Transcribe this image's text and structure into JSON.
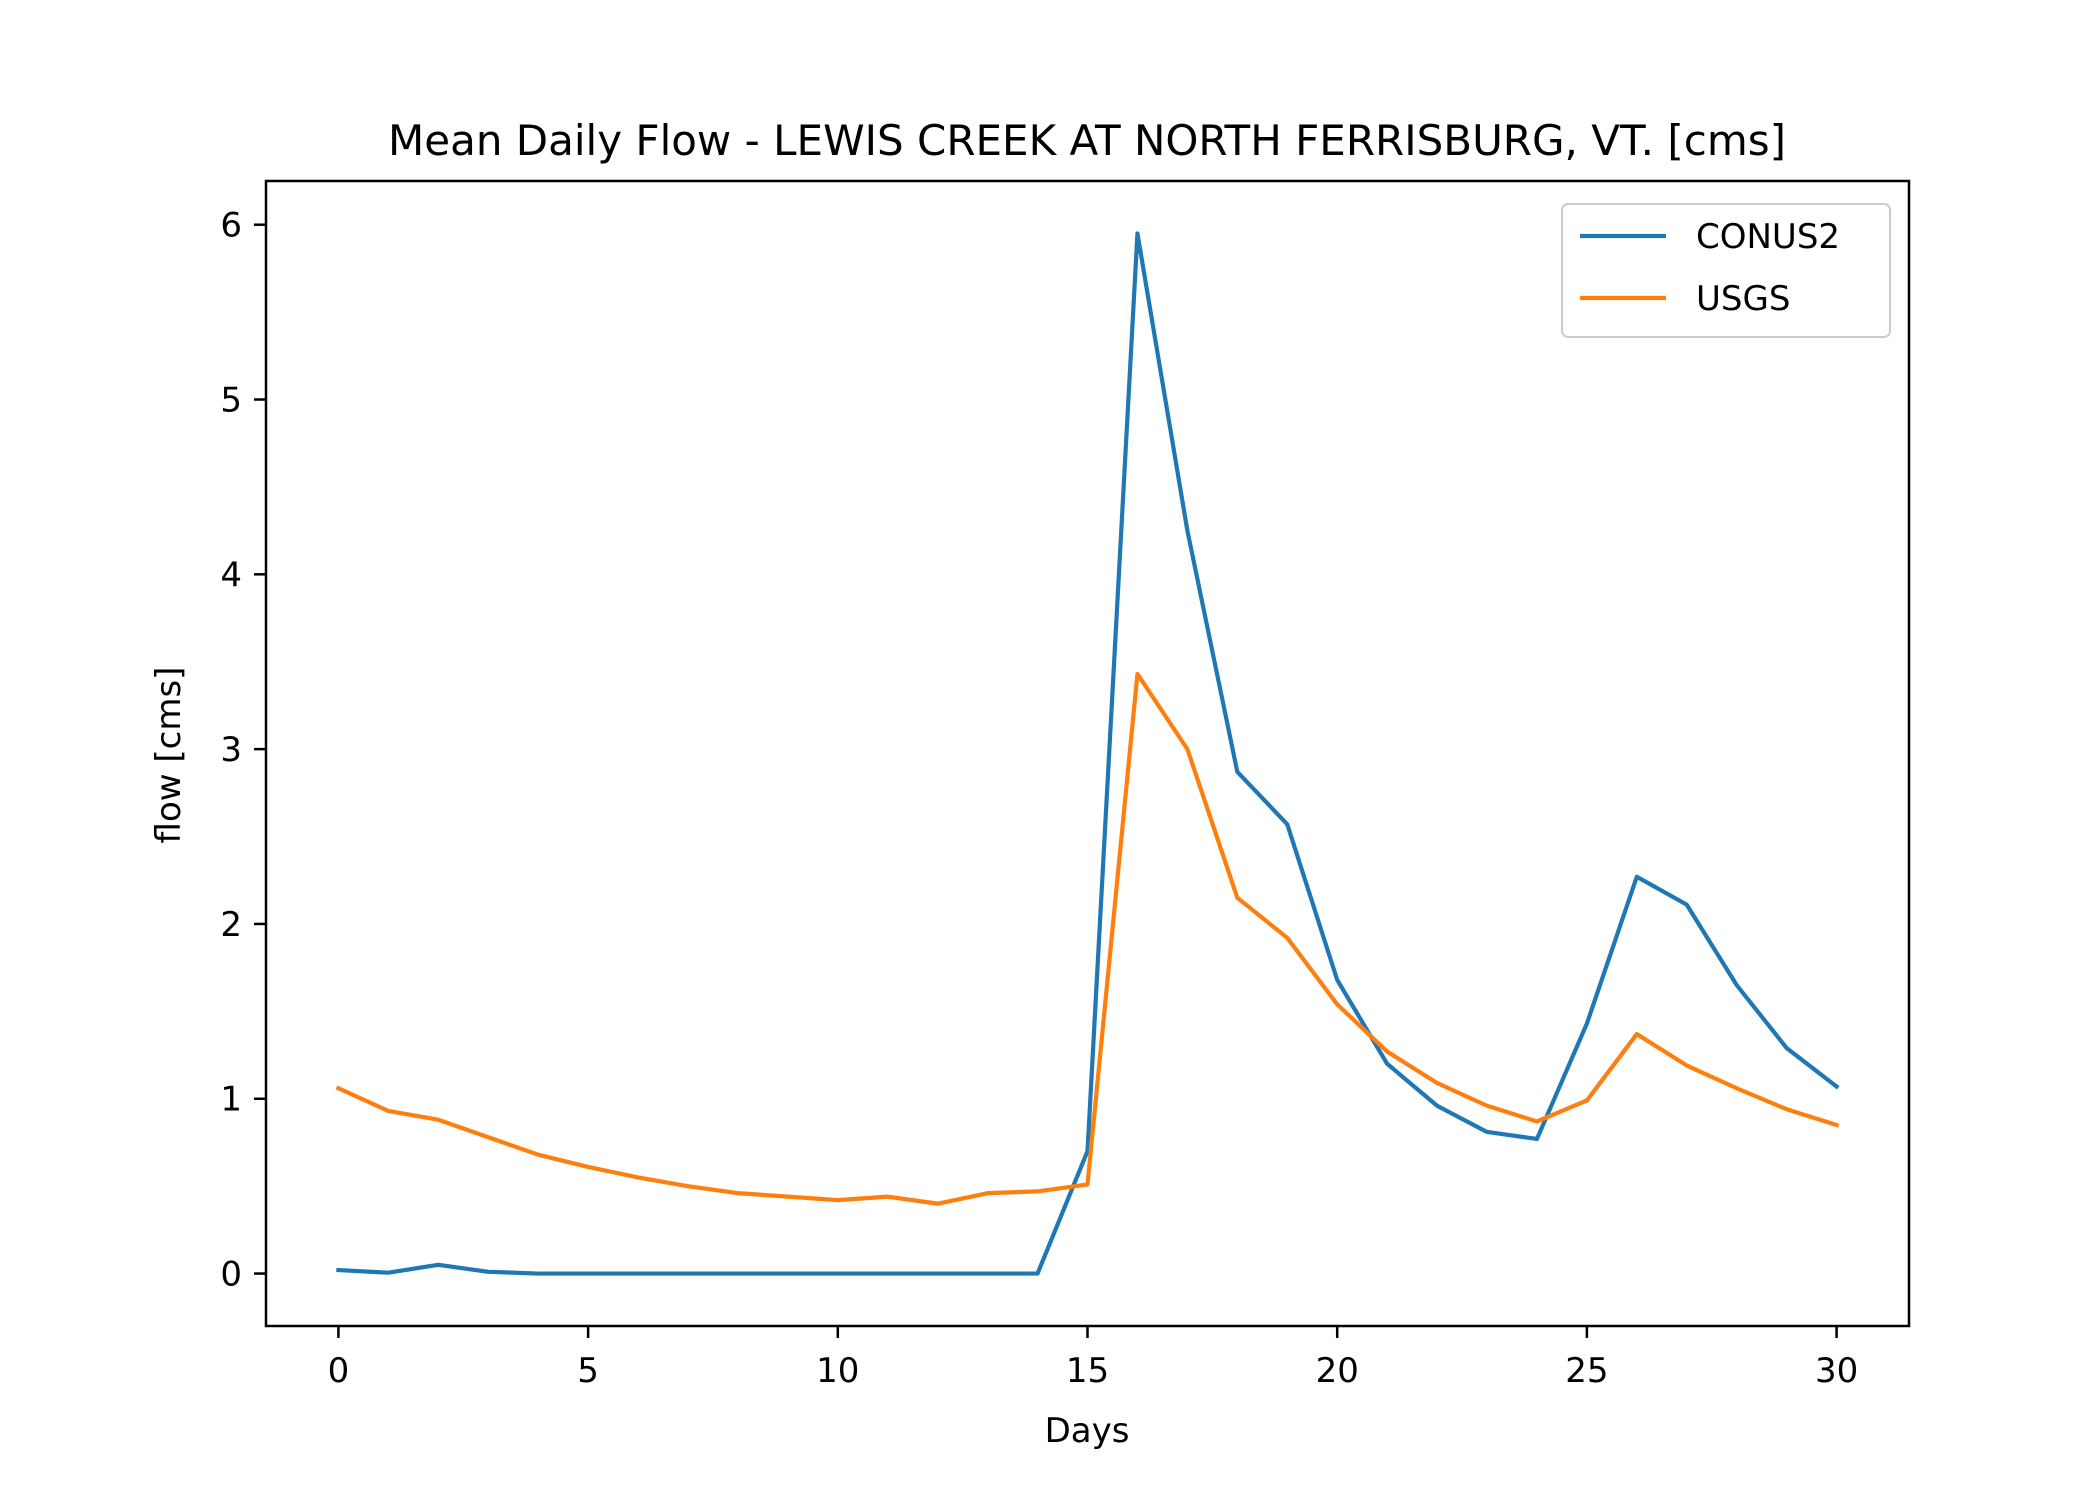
{
  "chart_data": {
    "type": "line",
    "title": "Mean Daily Flow - LEWIS CREEK AT NORTH FERRISBURG, VT. [cms]",
    "xlabel": "Days",
    "ylabel": "flow [cms]",
    "xlim": [
      -1.45,
      31.45
    ],
    "ylim": [
      -0.3,
      6.25
    ],
    "xticks": [
      0,
      5,
      10,
      15,
      20,
      25,
      30
    ],
    "yticks": [
      0,
      1,
      2,
      3,
      4,
      5,
      6
    ],
    "legend_position": "top-right",
    "grid": false,
    "x": [
      0,
      1,
      2,
      3,
      4,
      5,
      6,
      7,
      8,
      9,
      10,
      11,
      12,
      13,
      14,
      15,
      16,
      17,
      18,
      19,
      20,
      21,
      22,
      23,
      24,
      25,
      26,
      27,
      28,
      29,
      30
    ],
    "series": [
      {
        "name": "CONUS2",
        "color": "#1f77b4",
        "values": [
          0.02,
          0.005,
          0.05,
          0.01,
          0.0,
          0.0,
          0.0,
          0.0,
          0.0,
          0.0,
          0.0,
          0.0,
          0.0,
          0.0,
          0.0,
          0.7,
          5.95,
          4.25,
          2.87,
          2.57,
          1.68,
          1.2,
          0.96,
          0.81,
          0.77,
          1.43,
          2.27,
          2.11,
          1.65,
          1.29,
          1.07
        ]
      },
      {
        "name": "USGS",
        "color": "#ff7f0e",
        "values": [
          1.06,
          0.93,
          0.88,
          0.78,
          0.68,
          0.61,
          0.55,
          0.5,
          0.46,
          0.44,
          0.42,
          0.44,
          0.4,
          0.46,
          0.47,
          0.51,
          3.43,
          3.0,
          2.15,
          1.92,
          1.54,
          1.27,
          1.09,
          0.96,
          0.87,
          0.99,
          1.37,
          1.19,
          1.06,
          0.94,
          0.85
        ]
      }
    ]
  }
}
